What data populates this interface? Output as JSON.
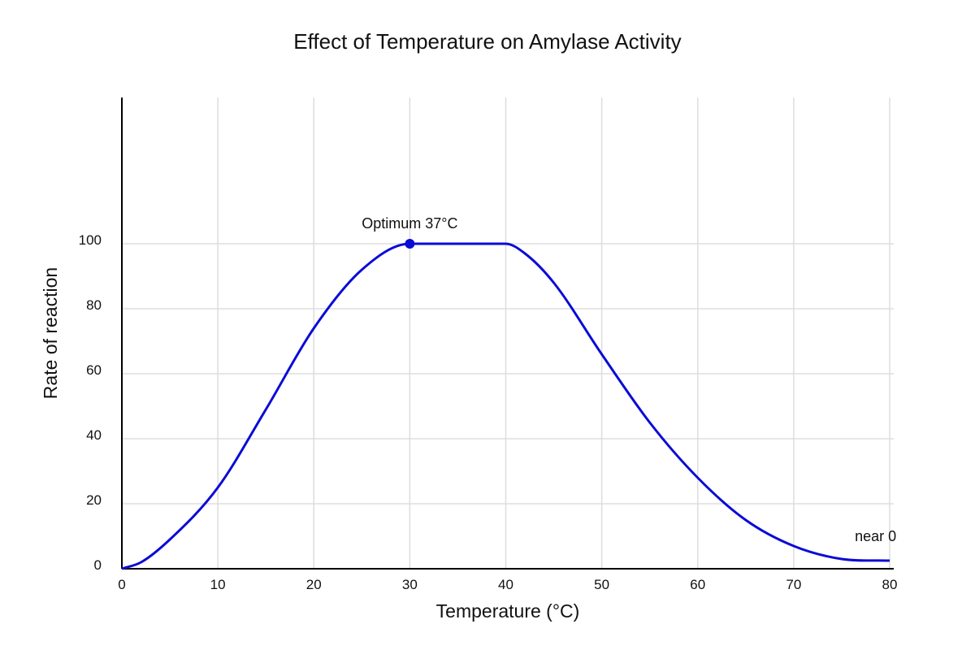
{
  "chart_data": {
    "type": "line",
    "title": "Effect of Temperature on Amylase Activity",
    "xlabel": "Temperature (°C)",
    "ylabel": "Rate of reaction",
    "xlim": [
      0,
      80
    ],
    "ylim": [
      0,
      145
    ],
    "x_ticks": [
      0,
      10,
      20,
      30,
      40,
      50,
      60,
      70,
      80
    ],
    "y_ticks": [
      0,
      20,
      40,
      60,
      80,
      100
    ],
    "grid": true,
    "colors": {
      "line": "#0b0bd6",
      "grid": "#dddddd",
      "axis": "#000000"
    },
    "series": [
      {
        "x": [
          0,
          2,
          5,
          10,
          15,
          20,
          25,
          30,
          35,
          40,
          42,
          45,
          50,
          55,
          60,
          65,
          70,
          75,
          80
        ],
        "y": [
          0,
          2,
          9,
          25,
          49,
          74,
          92,
          100,
          100,
          100,
          97,
          88,
          66,
          45,
          28,
          15,
          7,
          3,
          2.5
        ]
      }
    ],
    "annotations": [
      {
        "text": "Optimum 37°C",
        "x": 30,
        "y": 100,
        "marker": true
      },
      {
        "text": "near 0",
        "x": 79,
        "y": 2.5,
        "marker": false
      }
    ]
  }
}
